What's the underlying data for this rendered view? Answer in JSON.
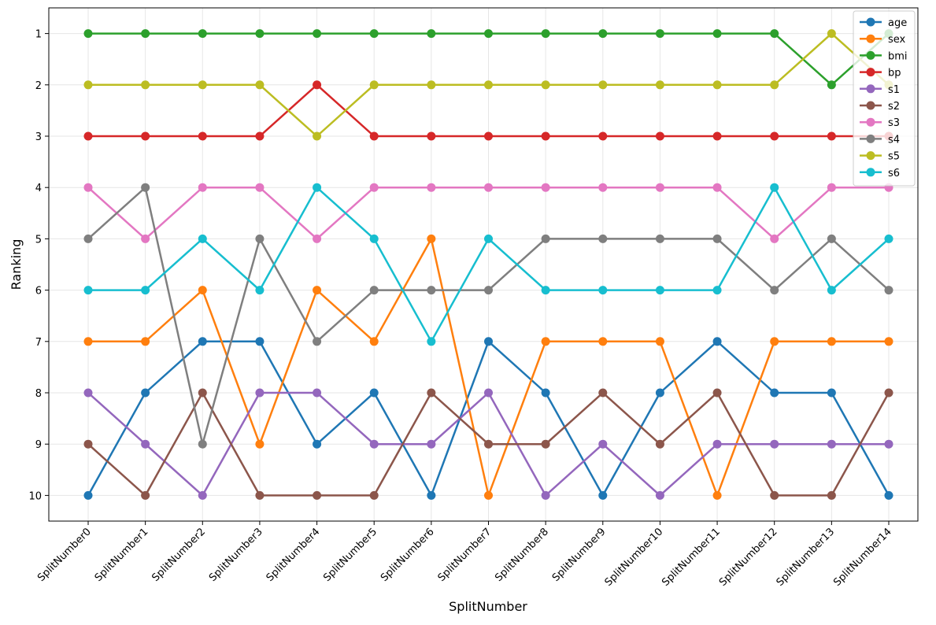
{
  "chart_data": {
    "type": "line",
    "x_label": "SplitNumber",
    "y_label": "Ranking",
    "categories": [
      "SplitNumber0",
      "SplitNumber1",
      "SplitNumber2",
      "SplitNumber3",
      "SplitNumber4",
      "SplitNumber5",
      "SplitNumber6",
      "SplitNumber7",
      "SplitNumber8",
      "SplitNumber9",
      "SplitNumber10",
      "SplitNumber11",
      "SplitNumber12",
      "SplitNumber13",
      "SplitNumber14"
    ],
    "series": [
      {
        "name": "age",
        "color": "#1f77b4",
        "values": [
          10,
          8,
          7,
          7,
          9,
          8,
          10,
          7,
          8,
          10,
          8,
          7,
          8,
          8,
          10
        ]
      },
      {
        "name": "sex",
        "color": "#ff7f0e",
        "values": [
          7,
          7,
          6,
          9,
          6,
          7,
          5,
          10,
          7,
          7,
          7,
          10,
          7,
          7,
          7
        ]
      },
      {
        "name": "bmi",
        "color": "#2ca02c",
        "values": [
          1,
          1,
          1,
          1,
          1,
          1,
          1,
          1,
          1,
          1,
          1,
          1,
          1,
          2,
          1
        ]
      },
      {
        "name": "bp",
        "color": "#d62728",
        "values": [
          3,
          3,
          3,
          3,
          2,
          3,
          3,
          3,
          3,
          3,
          3,
          3,
          3,
          3,
          3
        ]
      },
      {
        "name": "s1",
        "color": "#9467bd",
        "values": [
          8,
          9,
          10,
          8,
          8,
          9,
          9,
          8,
          10,
          9,
          10,
          9,
          9,
          9,
          9
        ]
      },
      {
        "name": "s2",
        "color": "#8c564b",
        "values": [
          9,
          10,
          8,
          10,
          10,
          10,
          8,
          9,
          9,
          8,
          9,
          8,
          10,
          10,
          8
        ]
      },
      {
        "name": "s3",
        "color": "#e377c2",
        "values": [
          4,
          5,
          4,
          4,
          5,
          4,
          4,
          4,
          4,
          4,
          4,
          4,
          5,
          4,
          4
        ]
      },
      {
        "name": "s4",
        "color": "#7f7f7f",
        "values": [
          5,
          4,
          9,
          5,
          7,
          6,
          6,
          6,
          5,
          5,
          5,
          5,
          6,
          5,
          6
        ]
      },
      {
        "name": "s5",
        "color": "#bcbd22",
        "values": [
          2,
          2,
          2,
          2,
          3,
          2,
          2,
          2,
          2,
          2,
          2,
          2,
          2,
          1,
          2
        ]
      },
      {
        "name": "s6",
        "color": "#17becf",
        "values": [
          6,
          6,
          5,
          6,
          4,
          5,
          7,
          5,
          6,
          6,
          6,
          6,
          4,
          6,
          5
        ]
      }
    ],
    "ylim": [
      10.5,
      0.5
    ],
    "yticks": [
      1,
      2,
      3,
      4,
      5,
      6,
      7,
      8,
      9,
      10
    ],
    "grid": true,
    "legend": "upper right"
  }
}
